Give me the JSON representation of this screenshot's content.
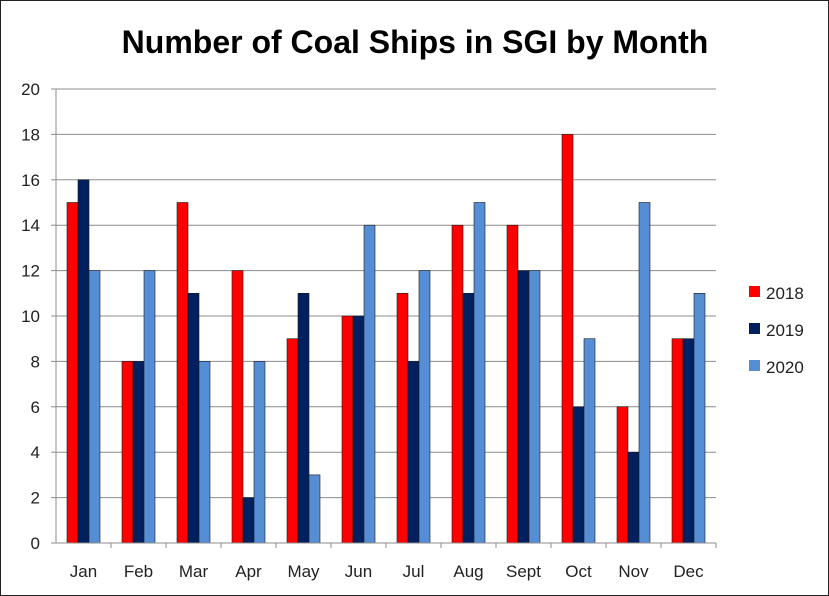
{
  "chart_data": {
    "type": "bar",
    "title": "Number of Coal Ships in SGI by Month",
    "xlabel": "",
    "ylabel": "",
    "ylim": [
      0,
      20
    ],
    "ytick_step": 2,
    "grid": true,
    "legend_position": "right",
    "categories": [
      "Jan",
      "Feb",
      "Mar",
      "Apr",
      "May",
      "Jun",
      "Jul",
      "Aug",
      "Sept",
      "Oct",
      "Nov",
      "Dec"
    ],
    "series": [
      {
        "name": "2018",
        "color": "#ff0000",
        "values": [
          15,
          8,
          15,
          12,
          9,
          10,
          11,
          14,
          14,
          18,
          6,
          9
        ]
      },
      {
        "name": "2019",
        "color": "#002060",
        "values": [
          16,
          8,
          11,
          2,
          11,
          10,
          8,
          11,
          12,
          6,
          4,
          9
        ]
      },
      {
        "name": "2020",
        "color": "#558ed5",
        "values": [
          12,
          12,
          8,
          8,
          3,
          14,
          12,
          15,
          12,
          9,
          15,
          11
        ]
      }
    ]
  }
}
